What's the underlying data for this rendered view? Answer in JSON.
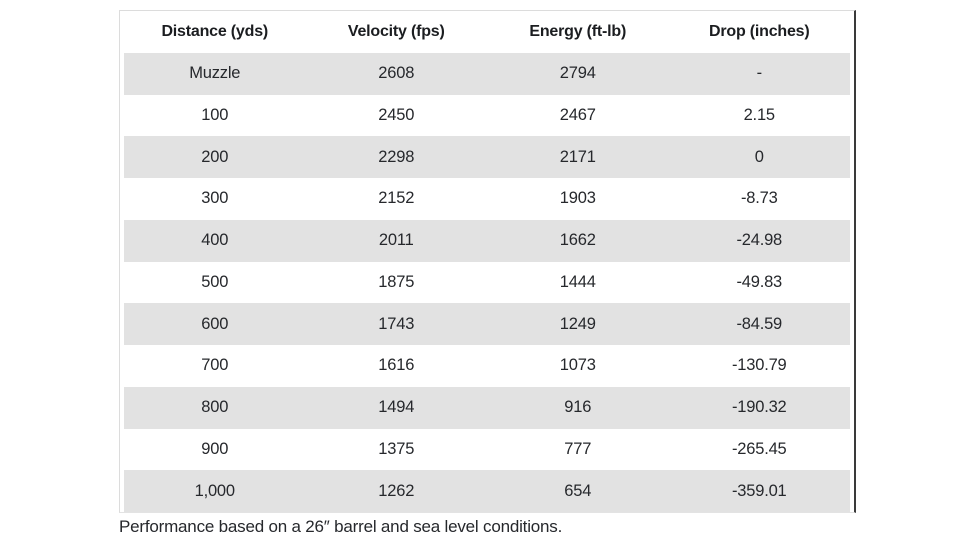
{
  "chart_data": {
    "type": "table",
    "title": "",
    "columns": [
      "Distance (yds)",
      "Velocity (fps)",
      "Energy (ft-lb)",
      "Drop (inches)"
    ],
    "rows": [
      [
        "Muzzle",
        "2608",
        "2794",
        "-"
      ],
      [
        "100",
        "2450",
        "2467",
        "2.15"
      ],
      [
        "200",
        "2298",
        "2171",
        "0"
      ],
      [
        "300",
        "2152",
        "1903",
        "-8.73"
      ],
      [
        "400",
        "2011",
        "1662",
        "-24.98"
      ],
      [
        "500",
        "1875",
        "1444",
        "-49.83"
      ],
      [
        "600",
        "1743",
        "1249",
        "-84.59"
      ],
      [
        "700",
        "1616",
        "1073",
        "-130.79"
      ],
      [
        "800",
        "1494",
        "916",
        "-190.32"
      ],
      [
        "900",
        "1375",
        "777",
        "-265.45"
      ],
      [
        "1,000",
        "1262",
        "654",
        "-359.01"
      ]
    ],
    "footnote": "Performance based on a 26″ barrel and sea level conditions.",
    "layout": {
      "alignment": "center",
      "striped_rows": "rows Muzzle, 200, 400, 600, 800, 1,000 shaded",
      "grid": "no inner gridlines, alternating row shading"
    }
  },
  "colors": {
    "row_stripe": "#e2e2e2",
    "text": "#26282c",
    "header_text": "#1b1d20",
    "border_light": "#dcdcdc",
    "border_dark": "#3a3a3a"
  }
}
